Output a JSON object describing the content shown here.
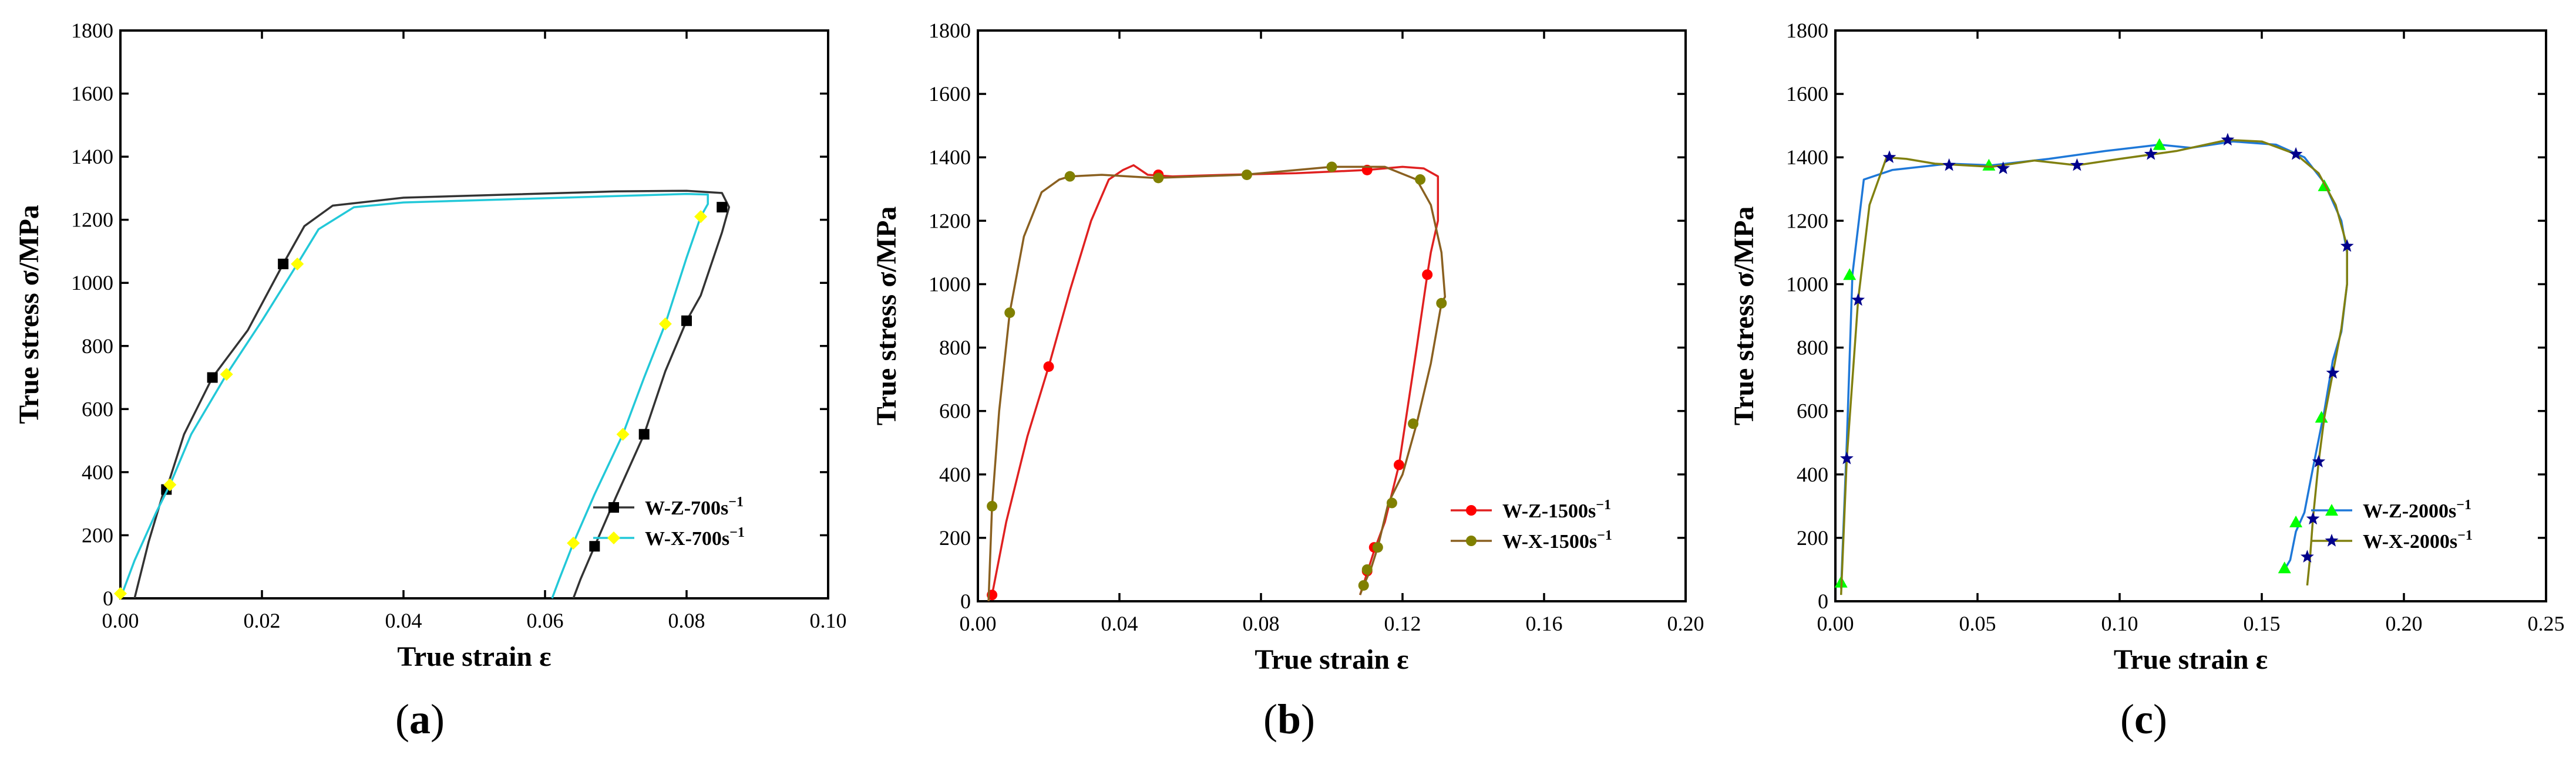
{
  "chart_data": [
    {
      "id": "a",
      "type": "line",
      "panel_label": "a",
      "xlabel": "True strain ε",
      "ylabel": "True stress σ/MPa",
      "xlim": [
        0,
        0.1
      ],
      "ylim": [
        0,
        1800
      ],
      "xticks": [
        0.0,
        0.02,
        0.04,
        0.06,
        0.08,
        0.1
      ],
      "xtick_labels": [
        "0.00",
        "0.02",
        "0.04",
        "0.06",
        "0.08",
        "0.10"
      ],
      "yticks": [
        0,
        200,
        400,
        600,
        800,
        1000,
        1200,
        1400,
        1600,
        1800
      ],
      "ytick_labels": [
        "0",
        "200",
        "400",
        "600",
        "800",
        "1000",
        "1200",
        "1400",
        "1600",
        "1800"
      ],
      "legend_position": "lower-right",
      "series": [
        {
          "name": "W-Z-700s⁻¹",
          "name_base": "W-Z-700s",
          "name_sup": "−1",
          "color": "#000000",
          "marker": "square",
          "line_color": "#333333",
          "x": [
            0.002,
            0.004,
            0.006,
            0.0065,
            0.009,
            0.013,
            0.018,
            0.023,
            0.026,
            0.03,
            0.04,
            0.055,
            0.07,
            0.08,
            0.085,
            0.086,
            0.085,
            0.082,
            0.08,
            0.077,
            0.074,
            0.07,
            0.067,
            0.065,
            0.064
          ],
          "y": [
            0,
            180,
            330,
            345,
            520,
            700,
            850,
            1060,
            1180,
            1245,
            1270,
            1280,
            1290,
            1292,
            1285,
            1240,
            1160,
            960,
            880,
            720,
            520,
            320,
            165,
            60,
            0
          ],
          "marker_x": [
            0.0065,
            0.013,
            0.023,
            0.085,
            0.08,
            0.074,
            0.067
          ],
          "marker_y": [
            345,
            700,
            1060,
            1240,
            880,
            520,
            165
          ]
        },
        {
          "name": "W-X-700s⁻¹",
          "name_base": "W-X-700s",
          "name_sup": "−1",
          "color": "#ffff00",
          "marker": "diamond",
          "line_color": "#22c8d8",
          "x": [
            0.0,
            0.002,
            0.005,
            0.007,
            0.01,
            0.015,
            0.02,
            0.025,
            0.028,
            0.033,
            0.04,
            0.055,
            0.07,
            0.08,
            0.083,
            0.083,
            0.082,
            0.08,
            0.077,
            0.074,
            0.071,
            0.067,
            0.064,
            0.062,
            0.061
          ],
          "y": [
            0,
            120,
            270,
            360,
            520,
            710,
            880,
            1060,
            1170,
            1240,
            1255,
            1265,
            1275,
            1282,
            1280,
            1250,
            1210,
            1080,
            870,
            700,
            520,
            330,
            175,
            60,
            0
          ],
          "marker_x": [
            0.0,
            0.007,
            0.015,
            0.025,
            0.082,
            0.077,
            0.071,
            0.064
          ],
          "marker_y": [
            15,
            360,
            710,
            1060,
            1210,
            870,
            520,
            175
          ]
        }
      ]
    },
    {
      "id": "b",
      "type": "line",
      "panel_label": "b",
      "xlabel": "True strain ε",
      "ylabel": "True stress σ/MPa",
      "xlim": [
        0,
        0.2
      ],
      "ylim": [
        0,
        1800
      ],
      "xticks": [
        0.0,
        0.04,
        0.08,
        0.12,
        0.16,
        0.2
      ],
      "xtick_labels": [
        "0.00",
        "0.04",
        "0.08",
        "0.12",
        "0.16",
        "0.20"
      ],
      "yticks": [
        0,
        200,
        400,
        600,
        800,
        1000,
        1200,
        1400,
        1600,
        1800
      ],
      "ytick_labels": [
        "0",
        "200",
        "400",
        "600",
        "800",
        "1000",
        "1200",
        "1400",
        "1600",
        "1800"
      ],
      "legend_position": "lower-right",
      "series": [
        {
          "name": "W-Z-1500s⁻¹",
          "name_base": "W-Z-1500s",
          "name_sup": "−1",
          "color": "#ff0000",
          "marker": "circle",
          "line_color": "#e02020",
          "x": [
            0.004,
            0.008,
            0.014,
            0.02,
            0.026,
            0.032,
            0.037,
            0.041,
            0.044,
            0.048,
            0.055,
            0.07,
            0.09,
            0.11,
            0.12,
            0.126,
            0.13,
            0.13,
            0.128,
            0.127,
            0.124,
            0.119,
            0.115,
            0.112,
            0.11,
            0.108
          ],
          "y": [
            20,
            250,
            520,
            740,
            980,
            1200,
            1330,
            1360,
            1375,
            1345,
            1340,
            1345,
            1350,
            1360,
            1370,
            1365,
            1340,
            1200,
            1100,
            1030,
            800,
            430,
            250,
            160,
            90,
            20
          ],
          "marker_x": [
            0.004,
            0.02,
            0.051,
            0.11,
            0.127,
            0.119,
            0.112,
            0.11
          ],
          "marker_y": [
            20,
            740,
            1345,
            1360,
            1030,
            430,
            170,
            95
          ]
        },
        {
          "name": "W-X-1500s⁻¹",
          "name_base": "W-X-1500s",
          "name_sup": "−1",
          "color": "#808000",
          "marker": "circle",
          "line_color": "#8a6020",
          "x": [
            0.003,
            0.004,
            0.006,
            0.009,
            0.013,
            0.018,
            0.023,
            0.026,
            0.035,
            0.05,
            0.075,
            0.1,
            0.115,
            0.124,
            0.128,
            0.131,
            0.132,
            0.131,
            0.128,
            0.124,
            0.12,
            0.116,
            0.113,
            0.111,
            0.109,
            0.108
          ],
          "y": [
            0,
            300,
            600,
            910,
            1150,
            1290,
            1330,
            1340,
            1345,
            1335,
            1345,
            1370,
            1370,
            1330,
            1250,
            1100,
            960,
            940,
            750,
            560,
            400,
            310,
            170,
            100,
            50,
            20
          ],
          "marker_x": [
            0.004,
            0.009,
            0.026,
            0.051,
            0.076,
            0.1,
            0.125,
            0.131,
            0.123,
            0.117,
            0.113,
            0.11,
            0.109
          ],
          "marker_y": [
            300,
            910,
            1340,
            1335,
            1345,
            1370,
            1330,
            940,
            560,
            310,
            170,
            100,
            50
          ]
        }
      ]
    },
    {
      "id": "c",
      "type": "line",
      "panel_label": "c",
      "xlabel": "True strain ε",
      "ylabel": "True stress σ/MPa",
      "xlim": [
        0,
        0.25
      ],
      "ylim": [
        0,
        1800
      ],
      "xticks": [
        0.0,
        0.05,
        0.1,
        0.15,
        0.2,
        0.25
      ],
      "xtick_labels": [
        "0.00",
        "0.05",
        "0.10",
        "0.15",
        "0.20",
        "0.25"
      ],
      "yticks": [
        0,
        200,
        400,
        600,
        800,
        1000,
        1200,
        1400,
        1600,
        1800
      ],
      "ytick_labels": [
        "0",
        "200",
        "400",
        "600",
        "800",
        "1000",
        "1200",
        "1400",
        "1600",
        "1800"
      ],
      "legend_position": "lower-right",
      "series": [
        {
          "name": "W-Z-2000s⁻¹",
          "name_base": "W-Z-2000s",
          "name_sup": "−1",
          "color": "#00ff00",
          "marker": "triangle",
          "line_color": "#1e78d8",
          "x": [
            0.002,
            0.004,
            0.006,
            0.01,
            0.02,
            0.04,
            0.055,
            0.075,
            0.095,
            0.114,
            0.125,
            0.14,
            0.155,
            0.165,
            0.172,
            0.178,
            0.18,
            0.18,
            0.178,
            0.175,
            0.172,
            0.168,
            0.165,
            0.162,
            0.16,
            0.158
          ],
          "y": [
            40,
            500,
            1030,
            1330,
            1360,
            1380,
            1375,
            1395,
            1420,
            1440,
            1430,
            1450,
            1440,
            1400,
            1320,
            1200,
            1100,
            1000,
            850,
            760,
            600,
            420,
            280,
            220,
            130,
            100
          ],
          "marker_x": [
            0.002,
            0.005,
            0.054,
            0.114,
            0.172,
            0.171,
            0.162,
            0.158
          ],
          "marker_y": [
            60,
            1030,
            1375,
            1440,
            1310,
            580,
            250,
            105
          ]
        },
        {
          "name": "W-X-2000s⁻¹",
          "name_base": "W-X-2000s",
          "name_sup": "−1",
          "color": "#00008b",
          "marker": "star",
          "line_color": "#808010",
          "x": [
            0.002,
            0.004,
            0.008,
            0.012,
            0.018,
            0.025,
            0.035,
            0.055,
            0.07,
            0.085,
            0.1,
            0.12,
            0.138,
            0.15,
            0.162,
            0.17,
            0.176,
            0.18,
            0.18,
            0.178,
            0.175,
            0.172,
            0.17,
            0.168,
            0.167,
            0.166
          ],
          "y": [
            20,
            450,
            950,
            1250,
            1400,
            1395,
            1380,
            1370,
            1390,
            1375,
            1395,
            1420,
            1455,
            1450,
            1410,
            1350,
            1250,
            1120,
            1000,
            860,
            720,
            580,
            440,
            260,
            140,
            50
          ],
          "marker_x": [
            0.004,
            0.008,
            0.019,
            0.04,
            0.059,
            0.085,
            0.111,
            0.138,
            0.162,
            0.18,
            0.175,
            0.17,
            0.168,
            0.166
          ],
          "marker_y": [
            450,
            950,
            1400,
            1375,
            1365,
            1375,
            1410,
            1455,
            1410,
            1120,
            720,
            440,
            260,
            140
          ]
        }
      ]
    }
  ]
}
